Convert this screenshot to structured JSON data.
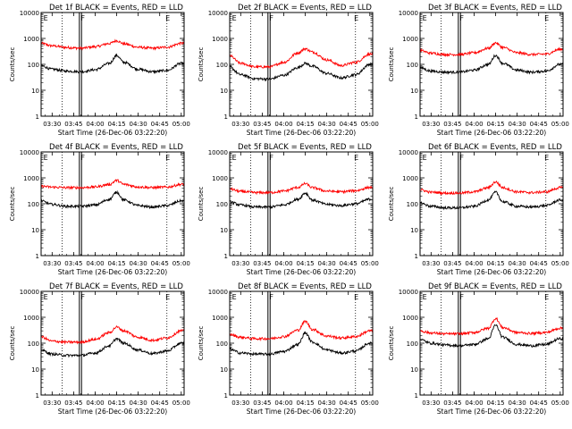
{
  "figure": {
    "ylabel": "Counts/sec",
    "xlabel": "Start Time (26-Dec-06 03:22:20)"
  },
  "chart_data": {
    "type": "line",
    "y_scale": "log",
    "ylim": [
      1,
      10000
    ],
    "y_ticks": [
      1,
      10,
      100,
      1000,
      10000
    ],
    "y_tick_labels": [
      "1",
      "10",
      "100",
      "1000",
      "10000"
    ],
    "xlim": [
      "03:22:20",
      "05:02:00"
    ],
    "x_ticks": [
      "03:30",
      "03:45",
      "04:00",
      "04:15",
      "04:30",
      "04:45",
      "05:00"
    ],
    "series_colors": {
      "events": "#000000",
      "lld": "#ff0000"
    },
    "grid": false,
    "panels": [
      {
        "title": "Det 1f BLACK = Events, RED = LLD",
        "markers": {
          "dotted": [
            "03:37",
            "04:50"
          ],
          "solid": [
            "03:49",
            "03:50:30"
          ],
          "labels": [
            {
              "t": "03:24",
              "text": "E"
            },
            {
              "t": "03:50",
              "text": "F"
            },
            {
              "t": "04:49",
              "text": "E"
            }
          ]
        },
        "events": {
          "t": [
            "03:22",
            "03:30",
            "03:40",
            "03:50",
            "04:00",
            "04:10",
            "04:15",
            "04:20",
            "04:30",
            "04:40",
            "04:50",
            "05:00"
          ],
          "v": [
            90,
            65,
            55,
            52,
            62,
            110,
            220,
            120,
            65,
            52,
            58,
            110
          ]
        },
        "lld": {
          "t": [
            "03:22",
            "03:30",
            "03:40",
            "03:50",
            "04:00",
            "04:10",
            "04:15",
            "04:20",
            "04:30",
            "04:40",
            "04:50",
            "05:00"
          ],
          "v": [
            650,
            520,
            450,
            420,
            480,
            640,
            820,
            620,
            460,
            420,
            460,
            650
          ]
        }
      },
      {
        "title": "Det 2f BLACK = Events, RED = LLD",
        "markers": {
          "dotted": [
            "03:37",
            "04:50"
          ],
          "solid": [
            "03:49",
            "03:50:30"
          ],
          "labels": [
            {
              "t": "03:24",
              "text": "E"
            },
            {
              "t": "03:50",
              "text": "F"
            },
            {
              "t": "04:49",
              "text": "E"
            }
          ]
        },
        "events": {
          "t": [
            "03:22",
            "03:30",
            "03:40",
            "03:50",
            "04:00",
            "04:10",
            "04:15",
            "04:20",
            "04:30",
            "04:40",
            "04:50",
            "05:00"
          ],
          "v": [
            80,
            40,
            28,
            27,
            38,
            75,
            110,
            85,
            45,
            30,
            40,
            100
          ]
        },
        "lld": {
          "t": [
            "03:22",
            "03:30",
            "03:40",
            "03:50",
            "04:00",
            "04:10",
            "04:15",
            "04:20",
            "04:30",
            "04:40",
            "04:50",
            "05:00"
          ],
          "v": [
            220,
            110,
            80,
            80,
            120,
            280,
            400,
            300,
            150,
            90,
            120,
            250
          ]
        }
      },
      {
        "title": "Det 3f BLACK = Events, RED = LLD",
        "markers": {
          "dotted": [
            "03:37",
            "04:50"
          ],
          "solid": [
            "03:49",
            "03:50:30"
          ],
          "labels": [
            {
              "t": "03:24",
              "text": "E"
            },
            {
              "t": "03:50",
              "text": "F"
            },
            {
              "t": "04:49",
              "text": "E"
            }
          ]
        },
        "events": {
          "t": [
            "03:22",
            "03:30",
            "03:40",
            "03:50",
            "04:00",
            "04:10",
            "04:15",
            "04:20",
            "04:30",
            "04:40",
            "04:50",
            "05:00"
          ],
          "v": [
            75,
            55,
            50,
            50,
            60,
            100,
            220,
            110,
            60,
            50,
            55,
            100
          ]
        },
        "lld": {
          "t": [
            "03:22",
            "03:30",
            "03:40",
            "03:50",
            "04:00",
            "04:10",
            "04:15",
            "04:20",
            "04:30",
            "04:40",
            "04:50",
            "05:00"
          ],
          "v": [
            350,
            270,
            240,
            240,
            280,
            420,
            680,
            450,
            280,
            240,
            250,
            380
          ]
        }
      },
      {
        "title": "Det 4f BLACK = Events, RED = LLD",
        "markers": {
          "dotted": [
            "03:37",
            "04:50"
          ],
          "solid": [
            "03:49",
            "03:50:30"
          ],
          "labels": [
            {
              "t": "03:24",
              "text": "E"
            },
            {
              "t": "03:50",
              "text": "F"
            },
            {
              "t": "04:49",
              "text": "E"
            }
          ]
        },
        "events": {
          "t": [
            "03:22",
            "03:30",
            "03:40",
            "03:50",
            "04:00",
            "04:10",
            "04:15",
            "04:20",
            "04:30",
            "04:40",
            "04:50",
            "05:00"
          ],
          "v": [
            130,
            95,
            80,
            80,
            90,
            150,
            280,
            140,
            85,
            75,
            85,
            130
          ]
        },
        "lld": {
          "t": [
            "03:22",
            "03:30",
            "03:40",
            "03:50",
            "04:00",
            "04:10",
            "04:15",
            "04:20",
            "04:30",
            "04:40",
            "04:50",
            "05:00"
          ],
          "v": [
            480,
            440,
            420,
            420,
            450,
            560,
            800,
            560,
            450,
            420,
            440,
            560
          ]
        }
      },
      {
        "title": "Det 5f BLACK = Events, RED = LLD",
        "markers": {
          "dotted": [
            "03:37",
            "04:50"
          ],
          "solid": [
            "03:49",
            "03:50:30"
          ],
          "labels": [
            {
              "t": "03:24",
              "text": "E"
            },
            {
              "t": "03:50",
              "text": "F"
            },
            {
              "t": "04:49",
              "text": "E"
            }
          ]
        },
        "events": {
          "t": [
            "03:22",
            "03:30",
            "03:40",
            "03:50",
            "04:00",
            "04:10",
            "04:15",
            "04:20",
            "04:30",
            "04:40",
            "04:50",
            "05:00"
          ],
          "v": [
            120,
            90,
            75,
            75,
            90,
            150,
            260,
            140,
            95,
            85,
            100,
            150
          ]
        },
        "lld": {
          "t": [
            "03:22",
            "03:30",
            "03:40",
            "03:50",
            "04:00",
            "04:10",
            "04:15",
            "04:20",
            "04:30",
            "04:40",
            "04:50",
            "05:00"
          ],
          "v": [
            380,
            300,
            270,
            270,
            310,
            430,
            600,
            420,
            310,
            290,
            320,
            430
          ]
        }
      },
      {
        "title": "Det 6f BLACK = Events, RED = LLD",
        "markers": {
          "dotted": [
            "03:37",
            "04:50"
          ],
          "solid": [
            "03:49",
            "03:50:30"
          ],
          "labels": [
            {
              "t": "03:24",
              "text": "E"
            },
            {
              "t": "03:50",
              "text": "F"
            },
            {
              "t": "04:49",
              "text": "E"
            }
          ]
        },
        "events": {
          "t": [
            "03:22",
            "03:30",
            "03:40",
            "03:50",
            "04:00",
            "04:10",
            "04:15",
            "04:20",
            "04:30",
            "04:40",
            "04:50",
            "05:00"
          ],
          "v": [
            110,
            80,
            70,
            70,
            80,
            140,
            280,
            120,
            80,
            75,
            85,
            140
          ]
        },
        "lld": {
          "t": [
            "03:22",
            "03:30",
            "03:40",
            "03:50",
            "04:00",
            "04:10",
            "04:15",
            "04:20",
            "04:30",
            "04:40",
            "04:50",
            "05:00"
          ],
          "v": [
            350,
            280,
            260,
            260,
            290,
            420,
            700,
            420,
            290,
            270,
            290,
            420
          ]
        }
      },
      {
        "title": "Det 7f BLACK = Events, RED = LLD",
        "markers": {
          "dotted": [
            "03:37",
            "04:50"
          ],
          "solid": [
            "03:49",
            "03:50:30"
          ],
          "labels": [
            {
              "t": "03:24",
              "text": "E"
            },
            {
              "t": "03:50",
              "text": "F"
            },
            {
              "t": "04:49",
              "text": "E"
            }
          ]
        },
        "events": {
          "t": [
            "03:22",
            "03:30",
            "03:40",
            "03:50",
            "04:00",
            "04:10",
            "04:15",
            "04:20",
            "04:30",
            "04:40",
            "04:50",
            "05:00"
          ],
          "v": [
            55,
            38,
            34,
            34,
            42,
            80,
            150,
            100,
            55,
            40,
            50,
            100
          ]
        },
        "lld": {
          "t": [
            "03:22",
            "03:30",
            "03:40",
            "03:50",
            "04:00",
            "04:10",
            "04:15",
            "04:20",
            "04:30",
            "04:40",
            "04:50",
            "05:00"
          ],
          "v": [
            180,
            120,
            110,
            110,
            140,
            260,
            420,
            300,
            170,
            130,
            160,
            300
          ]
        }
      },
      {
        "title": "Det 8f BLACK = Events, RED = LLD",
        "markers": {
          "dotted": [
            "03:37",
            "04:50"
          ],
          "solid": [
            "03:49",
            "03:50:30"
          ],
          "labels": [
            {
              "t": "03:24",
              "text": "E"
            },
            {
              "t": "03:50",
              "text": "F"
            },
            {
              "t": "04:49",
              "text": "E"
            }
          ]
        },
        "events": {
          "t": [
            "03:22",
            "03:30",
            "03:40",
            "03:50",
            "04:00",
            "04:10",
            "04:15",
            "04:20",
            "04:30",
            "04:40",
            "04:50",
            "05:00"
          ],
          "v": [
            60,
            42,
            38,
            38,
            48,
            90,
            250,
            110,
            55,
            42,
            50,
            100
          ]
        },
        "lld": {
          "t": [
            "03:22",
            "03:30",
            "03:40",
            "03:50",
            "04:00",
            "04:10",
            "04:15",
            "04:20",
            "04:30",
            "04:40",
            "04:50",
            "05:00"
          ],
          "v": [
            220,
            170,
            150,
            150,
            180,
            320,
            700,
            340,
            190,
            160,
            180,
            300
          ]
        }
      },
      {
        "title": "Det 9f BLACK = Events, RED = LLD",
        "markers": {
          "dotted": [
            "03:37",
            "04:50"
          ],
          "solid": [
            "03:49",
            "03:50:30"
          ],
          "labels": [
            {
              "t": "03:24",
              "text": "E"
            },
            {
              "t": "03:50",
              "text": "F"
            },
            {
              "t": "04:49",
              "text": "E"
            }
          ]
        },
        "events": {
          "t": [
            "03:22",
            "03:30",
            "03:40",
            "03:50",
            "04:00",
            "04:10",
            "04:15",
            "04:20",
            "04:30",
            "04:40",
            "04:50",
            "05:00"
          ],
          "v": [
            140,
            100,
            85,
            80,
            90,
            150,
            500,
            170,
            90,
            80,
            90,
            150
          ]
        },
        "lld": {
          "t": [
            "03:22",
            "03:30",
            "03:40",
            "03:50",
            "04:00",
            "04:10",
            "04:15",
            "04:20",
            "04:30",
            "04:40",
            "04:50",
            "05:00"
          ],
          "v": [
            300,
            250,
            230,
            230,
            260,
            380,
            900,
            400,
            260,
            240,
            260,
            380
          ]
        }
      }
    ]
  }
}
